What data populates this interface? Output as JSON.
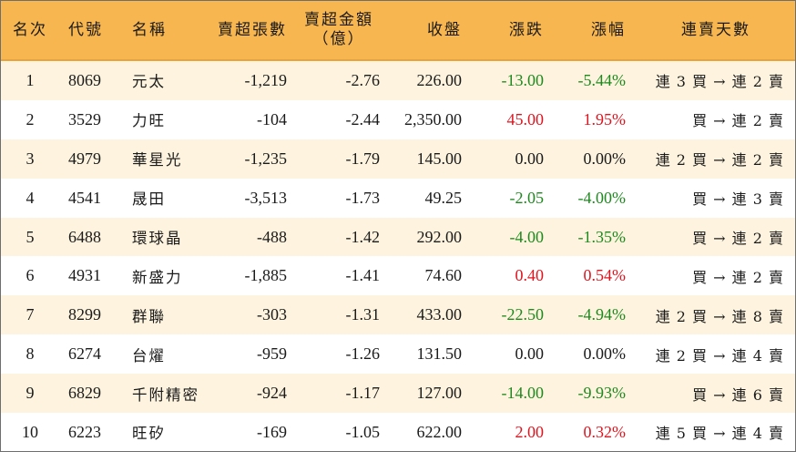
{
  "headers": {
    "rank": "名次",
    "code": "代號",
    "name": "名稱",
    "sell_lots": "賣超張數",
    "sell_amount_line1": "賣超金額",
    "sell_amount_line2": "（億）",
    "close": "收盤",
    "change": "漲跌",
    "change_pct": "漲幅",
    "streak": "連賣天數"
  },
  "colors": {
    "header_bg": "#f7b64f",
    "alt_row_bg": "#fdf3de",
    "down": "#1e8a1e",
    "up": "#e0141e"
  },
  "rows": [
    {
      "rank": "1",
      "code": "8069",
      "name": "元太",
      "sell_lots": "-1,219",
      "sell_amount": "-2.76",
      "close": "226.00",
      "change": "-13.00",
      "change_pct": "-5.44%",
      "direction": "down",
      "streak": "連 3 買 → 連 2 賣"
    },
    {
      "rank": "2",
      "code": "3529",
      "name": "力旺",
      "sell_lots": "-104",
      "sell_amount": "-2.44",
      "close": "2,350.00",
      "change": "45.00",
      "change_pct": "1.95%",
      "direction": "up",
      "streak": "買 → 連 2 賣"
    },
    {
      "rank": "3",
      "code": "4979",
      "name": "華星光",
      "sell_lots": "-1,235",
      "sell_amount": "-1.79",
      "close": "145.00",
      "change": "0.00",
      "change_pct": "0.00%",
      "direction": "flat",
      "streak": "連 2 買 → 連 2 賣"
    },
    {
      "rank": "4",
      "code": "4541",
      "name": "晟田",
      "sell_lots": "-3,513",
      "sell_amount": "-1.73",
      "close": "49.25",
      "change": "-2.05",
      "change_pct": "-4.00%",
      "direction": "down",
      "streak": "買 → 連 3 賣"
    },
    {
      "rank": "5",
      "code": "6488",
      "name": "環球晶",
      "sell_lots": "-488",
      "sell_amount": "-1.42",
      "close": "292.00",
      "change": "-4.00",
      "change_pct": "-1.35%",
      "direction": "down",
      "streak": "買 → 連 2 賣"
    },
    {
      "rank": "6",
      "code": "4931",
      "name": "新盛力",
      "sell_lots": "-1,885",
      "sell_amount": "-1.41",
      "close": "74.60",
      "change": "0.40",
      "change_pct": "0.54%",
      "direction": "up",
      "streak": "買 → 連 2 賣"
    },
    {
      "rank": "7",
      "code": "8299",
      "name": "群聯",
      "sell_lots": "-303",
      "sell_amount": "-1.31",
      "close": "433.00",
      "change": "-22.50",
      "change_pct": "-4.94%",
      "direction": "down",
      "streak": "連 2 買 → 連 8 賣"
    },
    {
      "rank": "8",
      "code": "6274",
      "name": "台燿",
      "sell_lots": "-959",
      "sell_amount": "-1.26",
      "close": "131.50",
      "change": "0.00",
      "change_pct": "0.00%",
      "direction": "flat",
      "streak": "連 2 買 → 連 4 賣"
    },
    {
      "rank": "9",
      "code": "6829",
      "name": "千附精密",
      "sell_lots": "-924",
      "sell_amount": "-1.17",
      "close": "127.00",
      "change": "-14.00",
      "change_pct": "-9.93%",
      "direction": "down",
      "streak": "買 → 連 6 賣"
    },
    {
      "rank": "10",
      "code": "6223",
      "name": "旺矽",
      "sell_lots": "-169",
      "sell_amount": "-1.05",
      "close": "622.00",
      "change": "2.00",
      "change_pct": "0.32%",
      "direction": "up",
      "streak": "連 5 買 → 連 4 賣"
    }
  ]
}
